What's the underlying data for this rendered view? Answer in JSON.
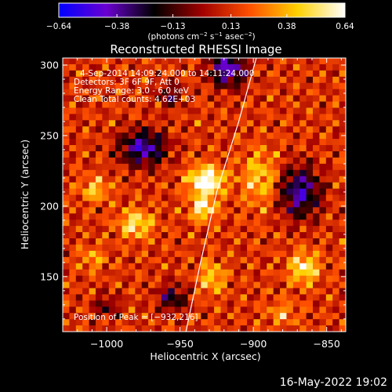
{
  "chart_data": {
    "type": "heatmap",
    "title": "Reconstructed RHESSI Image",
    "xlabel": "Heliocentric X (arcsec)",
    "ylabel": "Heliocentric Y (arcsec)",
    "xlim": [
      -1030,
      -837
    ],
    "ylim": [
      111,
      305
    ],
    "xticks": [
      -1000,
      -950,
      -900,
      -850
    ],
    "xtick_labels": [
      "−1000",
      "−950",
      "−900",
      "−850"
    ],
    "yticks": [
      150,
      200,
      250,
      300
    ],
    "ytick_labels": [
      "150",
      "200",
      "250",
      "300"
    ],
    "colorbar": {
      "min": -0.64,
      "max": 0.64,
      "ticks": [
        -0.64,
        -0.38,
        -0.13,
        0.13,
        0.38,
        0.64
      ],
      "tick_labels": [
        "−0.64",
        "−0.38",
        "−0.13",
        "0.13",
        "0.38",
        "0.64"
      ],
      "unit_parts": [
        "(photons cm",
        "−2",
        " s",
        "−1",
        " asec",
        "−2",
        ")"
      ],
      "colors": [
        "#0000ff",
        "#6a00d0",
        "#000000",
        "#a00000",
        "#ff5000",
        "#ffd000",
        "#ffffff"
      ]
    },
    "annotations": [
      "4‐Sep‐2014 14:09:24.000 to 14:11:24.000",
      "Detectors: 3F 6F 9F, Att 0",
      "Energy Range: 3.0 ‐ 6.0 keV",
      "Clean    Total counts: 4.62E+03"
    ],
    "peak_label": "Position of Peak = [−932,216]",
    "peak": [
      -932,
      216
    ],
    "limb_curve": [
      [
        -946,
        111
      ],
      [
        -936,
        160
      ],
      [
        -925,
        210
      ],
      [
        -910,
        260
      ],
      [
        -898,
        305
      ]
    ],
    "blobs": [
      {
        "x": -932,
        "y": 216,
        "sx": 8,
        "sy": 7,
        "a": 0.68
      },
      {
        "x": -934,
        "y": 196,
        "sx": 6,
        "sy": 6,
        "a": 0.45
      },
      {
        "x": -980,
        "y": 185,
        "sx": 8,
        "sy": 7,
        "a": 0.4
      },
      {
        "x": -1008,
        "y": 210,
        "sx": 7,
        "sy": 6,
        "a": 0.3
      },
      {
        "x": -895,
        "y": 218,
        "sx": 9,
        "sy": 14,
        "a": 0.3
      },
      {
        "x": -865,
        "y": 153,
        "sx": 7,
        "sy": 8,
        "a": 0.42
      },
      {
        "x": -928,
        "y": 146,
        "sx": 6,
        "sy": 8,
        "a": 0.32
      },
      {
        "x": -1010,
        "y": 160,
        "sx": 6,
        "sy": 6,
        "a": 0.22
      },
      {
        "x": -880,
        "y": 120,
        "sx": 7,
        "sy": 6,
        "a": 0.22
      },
      {
        "x": -975,
        "y": 240,
        "sx": 11,
        "sy": 9,
        "a": -0.55
      },
      {
        "x": -917,
        "y": 297,
        "sx": 9,
        "sy": 9,
        "a": -0.55
      },
      {
        "x": -868,
        "y": 208,
        "sx": 10,
        "sy": 13,
        "a": -0.52
      },
      {
        "x": -955,
        "y": 131,
        "sx": 7,
        "sy": 7,
        "a": -0.36
      },
      {
        "x": -957,
        "y": 278,
        "sx": 6,
        "sy": 6,
        "a": -0.3
      },
      {
        "x": -1000,
        "y": 125,
        "sx": 6,
        "sy": 6,
        "a": -0.25
      }
    ]
  },
  "footer": "16‐May‐2022 19:02"
}
